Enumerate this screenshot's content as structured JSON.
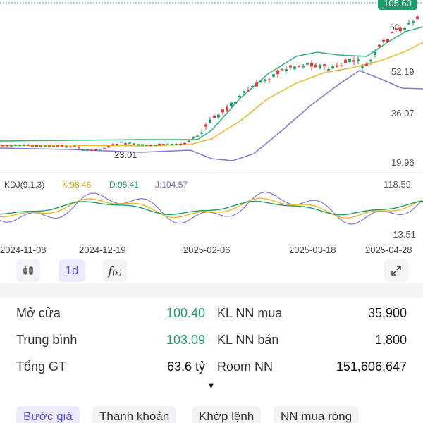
{
  "chart": {
    "price_badge": "105.60",
    "price_axis": [
      "52.19",
      "36.07",
      "19.96"
    ],
    "top_partial_label": "68",
    "low_marker": "23.01",
    "kdj": {
      "label": "KDJ(9,1,3)",
      "k": "K:98.46",
      "d": "D:95.41",
      "j": "J:104.57",
      "axis_top": "118.59",
      "axis_bottom": "-13.51"
    },
    "dates": [
      "2024-11-08",
      "2024-12-19",
      "2025-02-06",
      "2025-03-18",
      "2025-04-28"
    ],
    "colors": {
      "up": "#1a9d6a",
      "down": "#e53935",
      "band": "#2fb37a",
      "mid": "#e8b92a",
      "lower": "#8078d8",
      "k": "#e8b92a",
      "d": "#1a9d6a",
      "j": "#8078d8"
    }
  },
  "toolbar": {
    "candle_icon": "candlestick-icon",
    "interval": "1d",
    "indicator_icon": "fx-icon",
    "expand_icon": "expand-icon"
  },
  "stats": {
    "open_label": "Mở cửa",
    "open_value": "100.40",
    "avg_label": "Trung bình",
    "avg_value": "103.09",
    "total_label": "Tổng GT",
    "total_value": "63.6 tỷ",
    "buy_label": "KL NN mua",
    "buy_value": "35,900",
    "sell_label": "KL NN bán",
    "sell_value": "1,800",
    "room_label": "Room NN",
    "room_value": "151,606,647",
    "more_arrow": "▼"
  },
  "tabs": [
    "Bước giá",
    "Thanh khoản",
    "Khớp lệnh",
    "NN mua ròng"
  ]
}
